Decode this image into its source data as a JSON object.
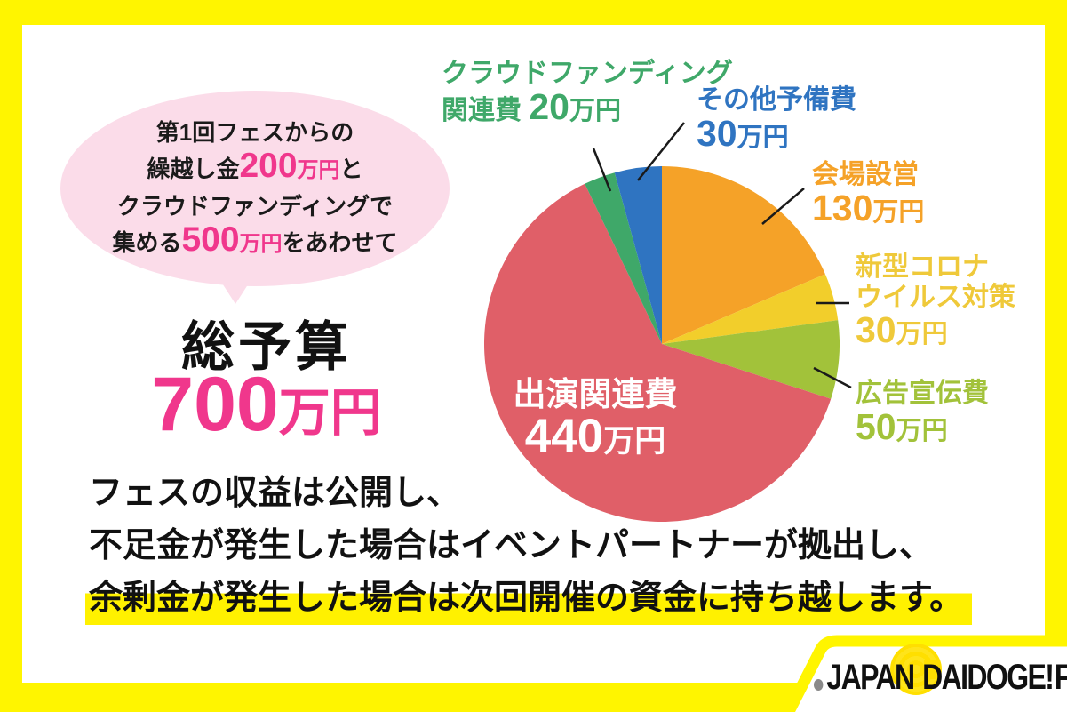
{
  "colors": {
    "frame_yellow": "#FFF500",
    "highlight_yellow": "#FFF100",
    "accent_pink": "#F0378C",
    "bubble_pink": "#FBDCE9",
    "ink": "#1A1A1A",
    "leader_line": "#1A1A1A",
    "logo_yellow": "#FFDF00",
    "logo_gray": "#8A8A8A"
  },
  "bubble": {
    "line1": "第1回フェスからの",
    "line2_pre": "繰越し金",
    "line2_num": "200",
    "line2_unit": "万円",
    "line2_post": "と",
    "line3": "クラウドファンディングで",
    "line4_pre": "集める",
    "line4_num": "500",
    "line4_unit": "万円",
    "line4_post": "をあわせて"
  },
  "budget": {
    "title": "総予算",
    "amount": "700",
    "unit": "万円"
  },
  "chart_data": {
    "type": "pie",
    "unit": "万円",
    "total": 700,
    "start_angle": "top",
    "direction": "clockwise",
    "legend_position": "around",
    "slices": [
      {
        "label": "会場設営",
        "value": 130,
        "color": "#F5A228"
      },
      {
        "label": "新型コロナウイルス対策",
        "value": 30,
        "color": "#F2CE2B"
      },
      {
        "label": "広告宣伝費",
        "value": 50,
        "color": "#A2C23A"
      },
      {
        "label": "出演関連費",
        "value": 440,
        "color": "#E05F68"
      },
      {
        "label": "クラウドファンディング関連費",
        "value": 20,
        "color": "#3FA869"
      },
      {
        "label": "その他予備費",
        "value": 30,
        "color": "#2F74C1"
      }
    ]
  },
  "callouts": {
    "crowdfunding": {
      "line1": "クラウドファンディング",
      "line2_pre": "関連費 ",
      "num": "20",
      "unit": "万円",
      "color": "#3FA869"
    },
    "reserve": {
      "line1": "その他予備費",
      "num": "30",
      "unit": "万円",
      "color": "#2F74C1"
    },
    "venue": {
      "line1": "会場設営",
      "num": "130",
      "unit": "万円",
      "color": "#F5A228"
    },
    "covid": {
      "line1": "新型コロナ",
      "line2": "ウイルス対策",
      "num": "30",
      "unit": "万円",
      "color": "#EFC93A"
    },
    "ads": {
      "line1": "広告宣伝費",
      "num": "50",
      "unit": "万円",
      "color": "#A2C23A"
    },
    "performance": {
      "line1": "出演関連費",
      "num": "440",
      "unit": "万円",
      "color": "#FFFFFF"
    }
  },
  "notes": {
    "line1": "フェスの収益は公開し、",
    "line2": "不足金が発生した場合はイベントパートナーが拠出し、",
    "line3": "余剰金が発生した場合は次回開催の資金に持ち越します。"
  },
  "logo": {
    "japan": "JAPAN",
    "daidogei": "DAIDOGE!",
    "fes": "FES"
  }
}
